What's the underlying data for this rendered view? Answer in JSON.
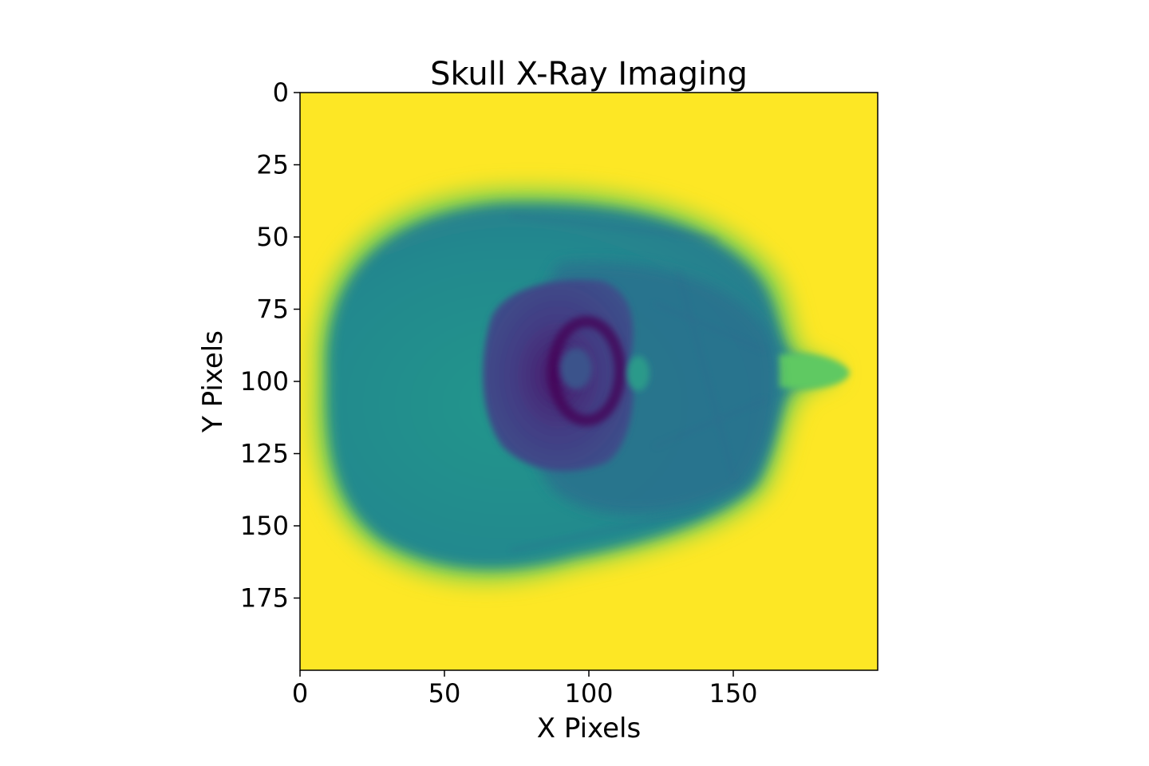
{
  "chart_data": {
    "type": "heatmap",
    "title": "Skull X-Ray Imaging",
    "xlabel": "X Pixels",
    "ylabel": "Y Pixels",
    "xlim": [
      0,
      200
    ],
    "ylim": [
      200,
      0
    ],
    "x_ticks": [
      0,
      50,
      100,
      150
    ],
    "y_ticks": [
      0,
      25,
      50,
      75,
      100,
      125,
      150,
      175
    ],
    "colormap": "viridis",
    "colors": {
      "background_yellow": "#fde725",
      "skull_green": "#22968b",
      "skull_teal": "#2a788e",
      "brain_purple": "#433d84",
      "dark_core": "#440154"
    },
    "regions": [
      {
        "label": "",
        "shape": "skull",
        "center": [
          95,
          102
        ],
        "value": 0.45
      },
      {
        "label": "",
        "shape": "core",
        "center": [
          98,
          95
        ],
        "value": 0.12
      }
    ]
  }
}
